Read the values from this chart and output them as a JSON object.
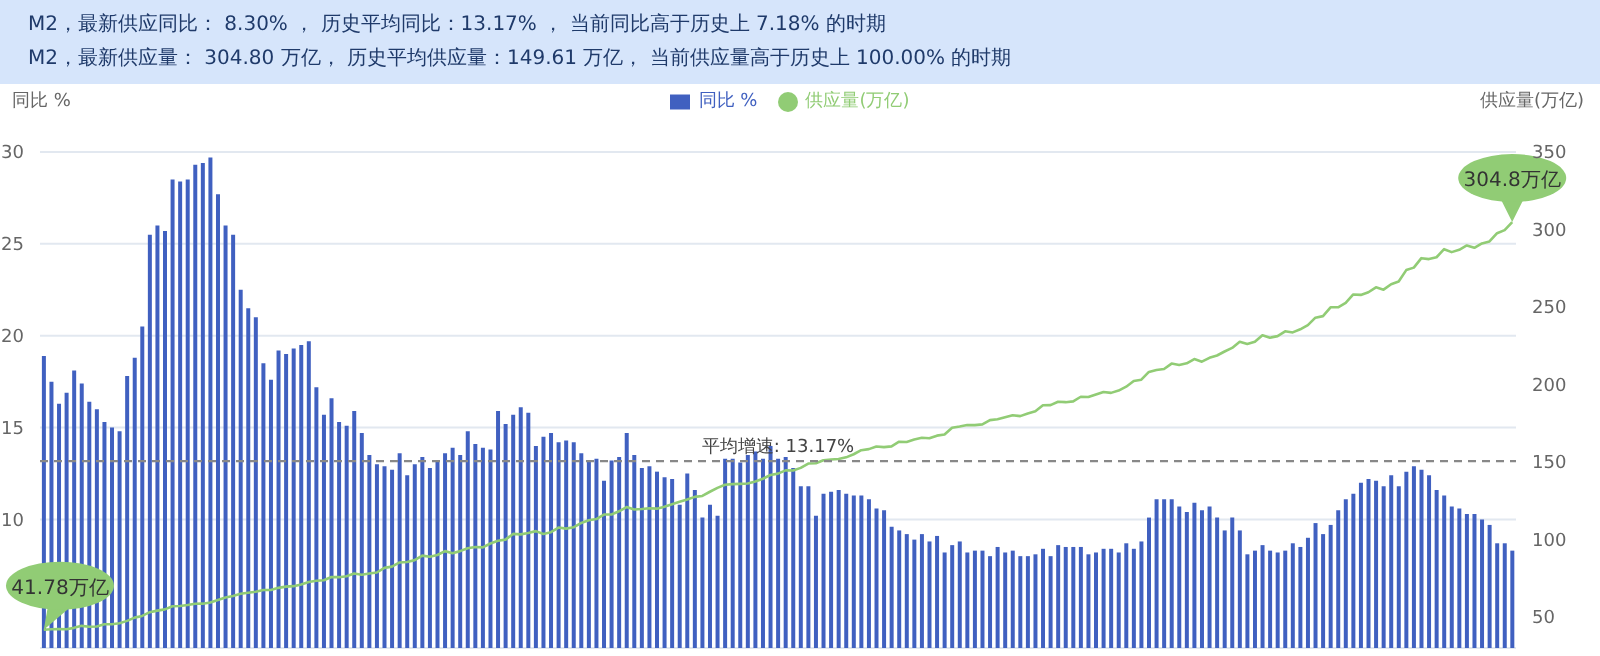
{
  "chart_data": {
    "type": "bar",
    "title": "M2，最新供应同比： 8.30% ， 历史平均同比：13.17% ， 当前同比高于历史上 7.18% 的时期",
    "subtitle": "M2，最新供应量： 304.80 万亿， 历史平均供应量：149.61 万亿， 当前供应量高于历史上 100.00% 的时期",
    "ylabel": "同比 %",
    "y2label": "供应量(万亿)",
    "categories": [
      null,
      null,
      null,
      null,
      null,
      null,
      null,
      null,
      null,
      null,
      null,
      null,
      null,
      null,
      null,
      null,
      null,
      null,
      null,
      null,
      null,
      null,
      null,
      null,
      null,
      null,
      null,
      null,
      null,
      null,
      null,
      null,
      null,
      null,
      null,
      null,
      null,
      null,
      null,
      null,
      null,
      null,
      null,
      null,
      null,
      null,
      null,
      null,
      null,
      null,
      null,
      null,
      null,
      null,
      null,
      null,
      null,
      null,
      null,
      null,
      null,
      null,
      null,
      null,
      null,
      null,
      null,
      null,
      null,
      null,
      null,
      null,
      null,
      null,
      null,
      null,
      null,
      null,
      null,
      null,
      null,
      null,
      null,
      null,
      null,
      null,
      null,
      null,
      null,
      null,
      null,
      null,
      null,
      null,
      null,
      null,
      null,
      null,
      null,
      null,
      null,
      null,
      null,
      null,
      null,
      null,
      null,
      null,
      null,
      null,
      null,
      null,
      null,
      null,
      null,
      null,
      null,
      null,
      null,
      null,
      null,
      null,
      null,
      null,
      null,
      null,
      null,
      null,
      null,
      null,
      null,
      null,
      null,
      null,
      null,
      null,
      null,
      null,
      null,
      null,
      null,
      null,
      null,
      null,
      null,
      null,
      null,
      null,
      null,
      null,
      null,
      null,
      null,
      null,
      null,
      null,
      null,
      null,
      null,
      null,
      null,
      null,
      null,
      null,
      null,
      null,
      null,
      null,
      null,
      null,
      null,
      null,
      null,
      null,
      null,
      null,
      null,
      null,
      null,
      null,
      null,
      null,
      null,
      null,
      null,
      null,
      null,
      null,
      null,
      null,
      null,
      null,
      null,
      null,
      null
    ],
    "series": [
      {
        "name": "同比 %",
        "axis": "y",
        "color": "#4060c0",
        "values": [
          18.9,
          17.5,
          16.3,
          16.9,
          18.1,
          17.4,
          16.4,
          16.0,
          15.3,
          15.0,
          14.8,
          17.8,
          18.8,
          20.5,
          25.5,
          26.0,
          25.7,
          28.5,
          28.4,
          28.5,
          29.3,
          29.4,
          29.7,
          27.7,
          26.0,
          25.5,
          22.5,
          21.5,
          21.0,
          18.5,
          17.6,
          19.2,
          19.0,
          19.3,
          19.5,
          19.7,
          17.2,
          15.7,
          16.6,
          15.3,
          15.1,
          15.9,
          14.7,
          13.5,
          13.0,
          12.9,
          12.7,
          13.6,
          12.4,
          13.0,
          13.4,
          12.8,
          13.2,
          13.6,
          13.9,
          13.5,
          14.8,
          14.1,
          13.9,
          13.8,
          15.9,
          15.2,
          15.7,
          16.1,
          15.8,
          14.0,
          14.5,
          14.7,
          14.2,
          14.3,
          14.2,
          13.6,
          13.2,
          13.3,
          12.1,
          13.2,
          13.4,
          14.7,
          13.5,
          12.8,
          12.9,
          12.6,
          12.3,
          12.2,
          10.8,
          12.5,
          11.6,
          10.1,
          10.8,
          10.2,
          13.3,
          13.3,
          13.1,
          13.5,
          13.7,
          13.3,
          14.0,
          13.3,
          13.4,
          12.8,
          11.8,
          11.8,
          10.2,
          11.4,
          11.5,
          11.6,
          11.4,
          11.3,
          11.3,
          11.1,
          10.6,
          10.5,
          9.6,
          9.4,
          9.2,
          8.9,
          9.2,
          8.8,
          9.1,
          8.2,
          8.6,
          8.8,
          8.2,
          8.3,
          8.3,
          8.0,
          8.5,
          8.2,
          8.3,
          8.0,
          8.0,
          8.1,
          8.4,
          8.0,
          8.6,
          8.5,
          8.5,
          8.5,
          8.1,
          8.2,
          8.4,
          8.4,
          8.2,
          8.7,
          8.4,
          8.8,
          10.1,
          11.1,
          11.1,
          11.1,
          10.7,
          10.4,
          10.9,
          10.5,
          10.7,
          10.1,
          9.4,
          10.1,
          9.4,
          8.1,
          8.3,
          8.6,
          8.3,
          8.2,
          8.3,
          8.7,
          8.5,
          9.0,
          9.8,
          9.2,
          9.7,
          10.5,
          11.1,
          11.4,
          12.0,
          12.2,
          12.1,
          11.8,
          12.4,
          11.8,
          12.6,
          12.9,
          12.7,
          12.4,
          11.6,
          11.3,
          10.7,
          10.6,
          10.3,
          10.3,
          10.0,
          9.7,
          8.7,
          8.7,
          8.3
        ]
      },
      {
        "name": "供应量(万亿)",
        "type": "line",
        "axis": "y2",
        "color": "#91cc75",
        "values": [
          41.8,
          42.1,
          42.3,
          42.1,
          43.0,
          44.3,
          43.7,
          43.9,
          45.3,
          45.3,
          46.0,
          47.5,
          49.6,
          50.7,
          53.1,
          54.1,
          54.9,
          56.9,
          57.1,
          57.7,
          58.5,
          58.6,
          59.4,
          61.0,
          62.6,
          63.6,
          65.0,
          65.6,
          66.3,
          67.4,
          67.4,
          68.8,
          69.6,
          69.9,
          71.0,
          72.6,
          73.4,
          73.7,
          75.8,
          75.7,
          76.3,
          78.1,
          77.3,
          78.1,
          78.7,
          81.7,
          82.5,
          85.2,
          85.5,
          86.7,
          89.6,
          88.9,
          90.0,
          92.5,
          91.2,
          92.5,
          94.4,
          95.2,
          94.9,
          97.4,
          99.2,
          99.9,
          103.6,
          103.3,
          104.2,
          105.4,
          103.6,
          104.7,
          107.7,
          107.0,
          107.9,
          110.7,
          112.4,
          113.2,
          116.1,
          116.1,
          118.2,
          120.9,
          119.4,
          119.7,
          120.2,
          119.9,
          121.2,
          122.8,
          124.3,
          125.8,
          127.5,
          128.1,
          130.8,
          133.3,
          135.3,
          135.7,
          135.9,
          136.1,
          137.4,
          139.2,
          141.6,
          142.5,
          144.6,
          144.5,
          146.2,
          149.0,
          149.2,
          151.1,
          151.6,
          151.9,
          153.0,
          155.0,
          157.6,
          158.3,
          160.0,
          159.6,
          160.1,
          163.1,
          162.9,
          164.5,
          165.6,
          165.3,
          167.0,
          167.7,
          172.1,
          172.9,
          173.9,
          173.8,
          174.3,
          177.0,
          177.6,
          178.9,
          180.2,
          179.6,
          181.3,
          182.7,
          186.6,
          186.7,
          188.9,
          188.6,
          189.1,
          192.1,
          191.9,
          193.6,
          195.2,
          194.6,
          196.1,
          198.6,
          202.3,
          203.1,
          208.1,
          209.4,
          210.0,
          213.5,
          212.6,
          213.7,
          216.4,
          214.7,
          217.2,
          218.7,
          221.3,
          223.6,
          227.6,
          226.2,
          227.6,
          231.8,
          230.2,
          231.2,
          234.3,
          233.6,
          235.6,
          238.3,
          243.1,
          244.1,
          249.8,
          249.8,
          252.7,
          258.1,
          257.8,
          259.5,
          262.7,
          261.2,
          264.7,
          266.4,
          273.8,
          275.4,
          281.5,
          280.9,
          282.1,
          287.3,
          285.4,
          286.9,
          289.7,
          288.2,
          291.0,
          292.3,
          297.6,
          299.6,
          304.8
        ]
      }
    ],
    "ylim": [
      3,
      30
    ],
    "yticks": [
      10,
      15,
      20,
      25,
      30
    ],
    "y2lim": [
      30,
      350
    ],
    "y2ticks": [
      50,
      100,
      150,
      200,
      250,
      300,
      350
    ],
    "ref_lines": [
      {
        "axis": "y",
        "value": 13.17,
        "label": "平均增速: 13.17%",
        "color": "#888888",
        "line_style": "dashed"
      }
    ],
    "annotations": [
      "41.78万亿",
      "304.8万亿"
    ],
    "grid": "y",
    "legend": "top",
    "marker": "none",
    "tick_labels": "y"
  }
}
